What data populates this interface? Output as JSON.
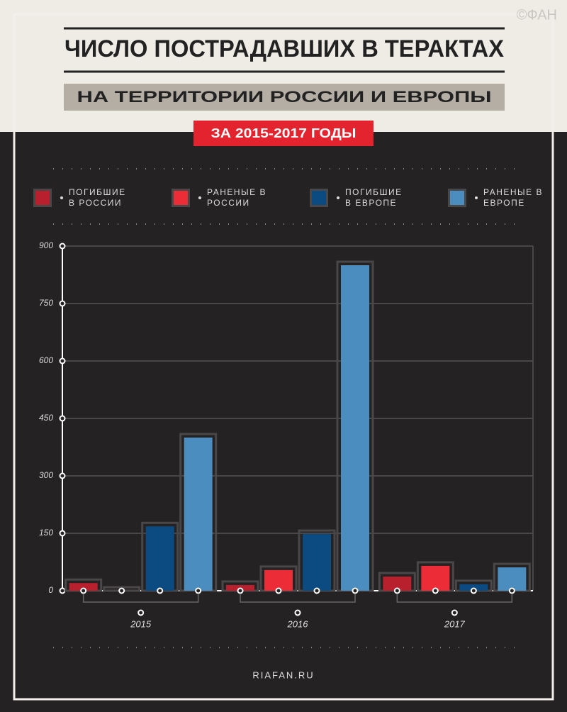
{
  "watermark": "©ФАН",
  "chart_data": {
    "type": "bar",
    "title": "ЧИСЛО ПОСТРАДАВШИХ В ТЕРАКТАХ",
    "subtitle": "НА ТЕРРИТОРИИ РОССИИ И ЕВРОПЫ",
    "period": "ЗА 2015-2017 ГОДЫ",
    "categories": [
      "2015",
      "2016",
      "2017"
    ],
    "series": [
      {
        "name": "ПОГИБШИЕ В РОССИИ",
        "color": "#b8202d",
        "values": [
          20,
          15,
          37
        ]
      },
      {
        "name": "РАНЕНЫЕ В РОССИИ",
        "color": "#ec2d38",
        "values": [
          0,
          54,
          65
        ]
      },
      {
        "name": "ПОГИБШИЕ В ЕВРОПЕ",
        "color": "#0b4b82",
        "values": [
          168,
          148,
          17
        ]
      },
      {
        "name": "РАНЕНЫЕ В ЕВРОПЕ",
        "color": "#4b8dbf",
        "values": [
          400,
          850,
          61
        ]
      }
    ],
    "ylim": [
      0,
      900
    ],
    "yticks": [
      0,
      150,
      300,
      450,
      600,
      750,
      900
    ],
    "grid": true
  },
  "footer": "RIAFAN.RU"
}
